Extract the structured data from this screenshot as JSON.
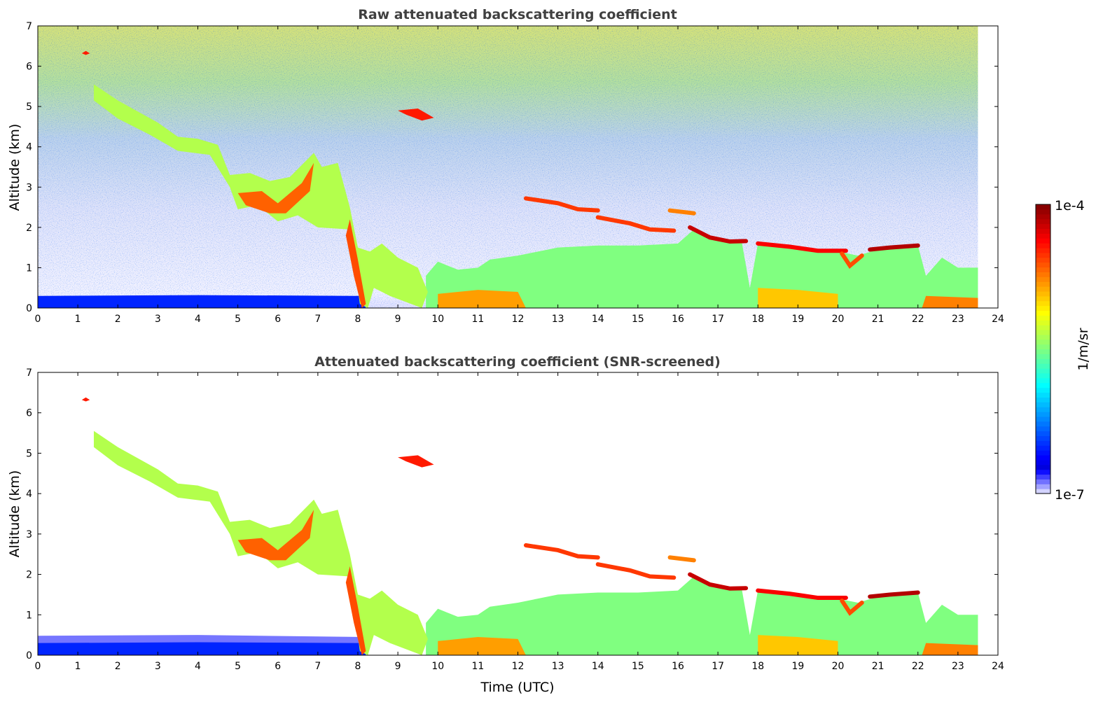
{
  "colorbar": {
    "label": "1/m/sr",
    "max_label": "1e-4",
    "min_label": "1e-7",
    "scale": "log",
    "colormap": "jet"
  },
  "chart_data": [
    {
      "type": "heatmap",
      "title": "Raw attenuated backscattering coefficient",
      "xlabel": "",
      "ylabel": "Altitude (km)",
      "xlim": [
        0,
        24
      ],
      "ylim": [
        0,
        7
      ],
      "xticks": [
        "0",
        "1",
        "2",
        "3",
        "4",
        "5",
        "6",
        "7",
        "8",
        "9",
        "10",
        "11",
        "12",
        "13",
        "14",
        "15",
        "16",
        "17",
        "18",
        "19",
        "20",
        "21",
        "22",
        "23",
        "24"
      ],
      "yticks": [
        "0",
        "1",
        "2",
        "3",
        "4",
        "5",
        "6",
        "7"
      ],
      "data_end_time": 23.5,
      "background_noise": true
    },
    {
      "type": "heatmap",
      "title": "Attenuated backscattering coefficient (SNR-screened)",
      "xlabel": "Time (UTC)",
      "ylabel": "Altitude (km)",
      "xlim": [
        0,
        24
      ],
      "ylim": [
        0,
        7
      ],
      "xticks": [
        "0",
        "1",
        "2",
        "3",
        "4",
        "5",
        "6",
        "7",
        "8",
        "9",
        "10",
        "11",
        "12",
        "13",
        "14",
        "15",
        "16",
        "17",
        "18",
        "19",
        "20",
        "21",
        "22",
        "23",
        "24"
      ],
      "yticks": [
        "0",
        "1",
        "2",
        "3",
        "4",
        "5",
        "6",
        "7"
      ],
      "data_end_time": 23.5,
      "background_noise": false
    }
  ],
  "features": [
    {
      "name": "surface-layer-haze",
      "level": 0.04,
      "poly": [
        [
          0,
          0
        ],
        [
          0,
          0.48
        ],
        [
          4,
          0.5
        ],
        [
          8.2,
          0.45
        ],
        [
          8.2,
          0
        ]
      ]
    },
    {
      "name": "surface-layer",
      "level": 0.16,
      "poly": [
        [
          0,
          0
        ],
        [
          0,
          0.3
        ],
        [
          4,
          0.32
        ],
        [
          8.1,
          0.3
        ],
        [
          8.2,
          0
        ]
      ]
    },
    {
      "name": "boundary-layer",
      "level": 0.5,
      "poly": [
        [
          9.7,
          0
        ],
        [
          9.7,
          0.8
        ],
        [
          10,
          1.15
        ],
        [
          10.5,
          0.95
        ],
        [
          11,
          1.0
        ],
        [
          11.3,
          1.2
        ],
        [
          12,
          1.3
        ],
        [
          13,
          1.5
        ],
        [
          14,
          1.55
        ],
        [
          15,
          1.55
        ],
        [
          16,
          1.6
        ],
        [
          16.4,
          1.95
        ],
        [
          17,
          1.7
        ],
        [
          17.6,
          1.62
        ],
        [
          17.8,
          0.5
        ],
        [
          18,
          1.6
        ],
        [
          20,
          1.4
        ],
        [
          20.5,
          1.3
        ],
        [
          21,
          1.45
        ],
        [
          22,
          1.55
        ],
        [
          22.2,
          0.8
        ],
        [
          22.6,
          1.25
        ],
        [
          23,
          1.0
        ],
        [
          23.5,
          1.0
        ],
        [
          23.5,
          0
        ]
      ]
    },
    {
      "name": "boundary-layer-surface-a",
      "level": 0.72,
      "poly": [
        [
          10,
          0
        ],
        [
          10,
          0.35
        ],
        [
          11,
          0.45
        ],
        [
          12,
          0.4
        ],
        [
          12.2,
          0
        ]
      ]
    },
    {
      "name": "boundary-layer-surface-b",
      "level": 0.68,
      "poly": [
        [
          18,
          0
        ],
        [
          18,
          0.5
        ],
        [
          19,
          0.45
        ],
        [
          20,
          0.35
        ],
        [
          20,
          0
        ]
      ]
    },
    {
      "name": "boundary-layer-surface-c",
      "level": 0.75,
      "poly": [
        [
          22.1,
          0
        ],
        [
          22.2,
          0.3
        ],
        [
          23.5,
          0.25
        ],
        [
          23.5,
          0
        ]
      ]
    },
    {
      "name": "descending-cloud",
      "level": 0.55,
      "poly": [
        [
          1.4,
          5.55
        ],
        [
          2,
          5.15
        ],
        [
          3,
          4.6
        ],
        [
          3.5,
          4.25
        ],
        [
          4,
          4.2
        ],
        [
          4.5,
          4.05
        ],
        [
          4.8,
          3.3
        ],
        [
          5.3,
          3.35
        ],
        [
          5.8,
          3.15
        ],
        [
          6.3,
          3.25
        ],
        [
          6.9,
          3.85
        ],
        [
          7.1,
          3.5
        ],
        [
          7.5,
          3.6
        ],
        [
          7.8,
          2.5
        ],
        [
          8.0,
          1.5
        ],
        [
          8.3,
          1.4
        ],
        [
          8.6,
          1.6
        ],
        [
          9,
          1.25
        ],
        [
          9.5,
          1.0
        ],
        [
          9.75,
          0.4
        ],
        [
          9.6,
          0
        ],
        [
          8.8,
          0.3
        ],
        [
          8.4,
          0.5
        ],
        [
          8.25,
          0
        ],
        [
          8.05,
          0.1
        ],
        [
          7.8,
          1.95
        ],
        [
          7,
          2.0
        ],
        [
          6.5,
          2.3
        ],
        [
          6,
          2.15
        ],
        [
          5.5,
          2.55
        ],
        [
          5,
          2.45
        ],
        [
          4.8,
          3.0
        ],
        [
          4.3,
          3.8
        ],
        [
          3.5,
          3.9
        ],
        [
          2.8,
          4.3
        ],
        [
          2,
          4.7
        ],
        [
          1.4,
          5.15
        ]
      ]
    },
    {
      "name": "descending-cloud-core",
      "level": 0.78,
      "poly": [
        [
          5,
          2.85
        ],
        [
          5.6,
          2.9
        ],
        [
          6,
          2.6
        ],
        [
          6.6,
          3.1
        ],
        [
          6.9,
          3.6
        ],
        [
          6.8,
          2.9
        ],
        [
          6.2,
          2.35
        ],
        [
          5.8,
          2.35
        ],
        [
          5.2,
          2.55
        ]
      ]
    },
    {
      "name": "fall-streak",
      "level": 0.8,
      "poly": [
        [
          7.8,
          2.2
        ],
        [
          8.0,
          1.2
        ],
        [
          8.2,
          0.1
        ],
        [
          8.1,
          0.0
        ],
        [
          7.9,
          0.8
        ],
        [
          7.7,
          1.8
        ]
      ]
    },
    {
      "name": "high-cloud",
      "level": 0.85,
      "poly": [
        [
          9.0,
          4.9
        ],
        [
          9.5,
          4.95
        ],
        [
          9.9,
          4.72
        ],
        [
          9.6,
          4.65
        ],
        [
          9.2,
          4.8
        ]
      ]
    },
    {
      "name": "high-cloud-small",
      "level": 0.85,
      "poly": [
        [
          1.1,
          6.32
        ],
        [
          1.2,
          6.38
        ],
        [
          1.3,
          6.32
        ],
        [
          1.2,
          6.28
        ]
      ]
    },
    {
      "name": "thin-cloud-1",
      "level": 0.82,
      "line": [
        [
          12.2,
          2.72
        ],
        [
          13,
          2.6
        ],
        [
          13.5,
          2.45
        ],
        [
          14,
          2.42
        ]
      ]
    },
    {
      "name": "thin-cloud-2",
      "level": 0.82,
      "line": [
        [
          14,
          2.25
        ],
        [
          14.8,
          2.1
        ],
        [
          15.3,
          1.95
        ],
        [
          15.9,
          1.92
        ]
      ]
    },
    {
      "name": "thin-cloud-3",
      "level": 0.75,
      "line": [
        [
          15.8,
          2.42
        ],
        [
          16.4,
          2.35
        ]
      ]
    },
    {
      "name": "cloud-layer-4",
      "level": 0.93,
      "line": [
        [
          16.3,
          2.0
        ],
        [
          16.8,
          1.75
        ],
        [
          17.3,
          1.65
        ],
        [
          17.7,
          1.66
        ]
      ]
    },
    {
      "name": "cloud-layer-5",
      "level": 0.88,
      "line": [
        [
          18,
          1.6
        ],
        [
          18.8,
          1.52
        ],
        [
          19.5,
          1.42
        ],
        [
          20.2,
          1.42
        ]
      ]
    },
    {
      "name": "cloud-layer-6",
      "level": 0.95,
      "line": [
        [
          20.8,
          1.45
        ],
        [
          21.3,
          1.5
        ],
        [
          22,
          1.55
        ]
      ]
    },
    {
      "name": "cloud-dip",
      "level": 0.8,
      "line": [
        [
          20.1,
          1.35
        ],
        [
          20.3,
          1.05
        ],
        [
          20.6,
          1.3
        ]
      ]
    }
  ]
}
